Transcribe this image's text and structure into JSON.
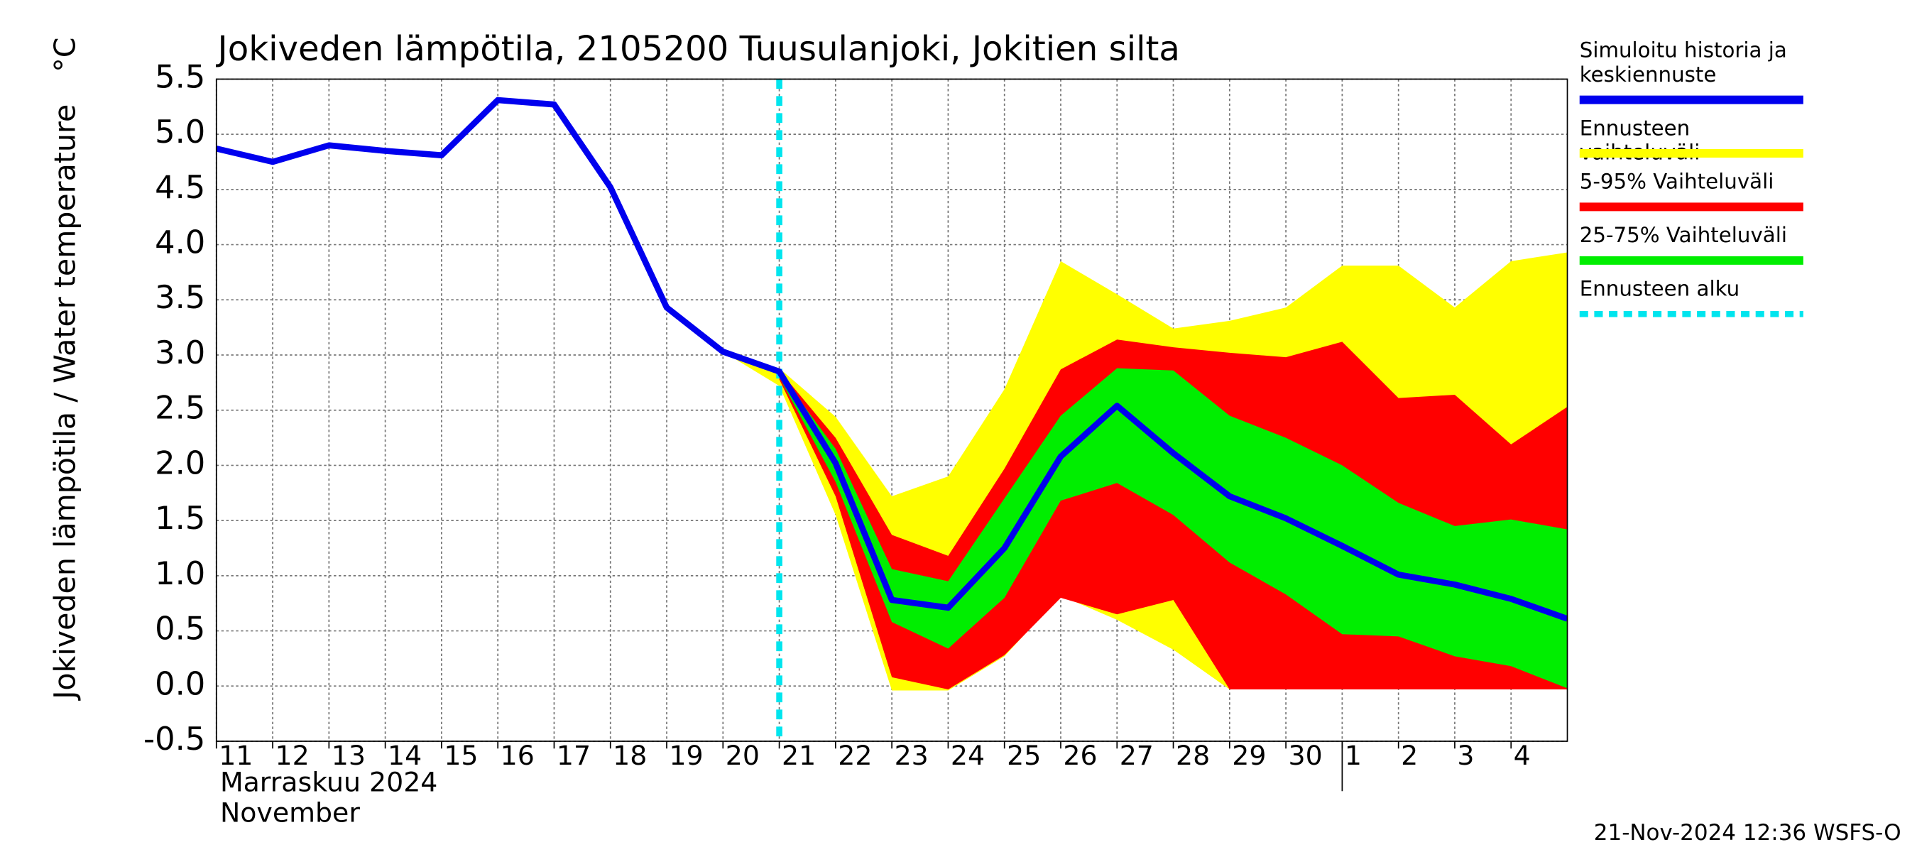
{
  "chart_data": {
    "type": "line",
    "title": "Jokiveden lämpötila, 2105200 Tuusulanjoki, Jokitien silta",
    "y_label": "Jokiveden lämpötila / Water temperature",
    "y_unit": "°C",
    "month_label_fi": "Marraskuu 2024",
    "month_label_en": "November",
    "footer": "21-Nov-2024 12:36 WSFS-O",
    "x": [
      11,
      12,
      13,
      14,
      15,
      16,
      17,
      18,
      19,
      20,
      21,
      22,
      23,
      24,
      25,
      26,
      27,
      28,
      29,
      30,
      31,
      32,
      33,
      34,
      35
    ],
    "xlim": [
      11,
      35
    ],
    "xticks": [
      11,
      12,
      13,
      14,
      15,
      16,
      17,
      18,
      19,
      20,
      21,
      22,
      23,
      24,
      25,
      26,
      27,
      28,
      29,
      30,
      {
        "value": 31,
        "label": "1"
      },
      {
        "value": 32,
        "label": "2"
      },
      {
        "value": 33,
        "label": "3"
      },
      {
        "value": 34,
        "label": "4"
      }
    ],
    "month_separator": 31,
    "ylim": [
      -0.5,
      5.5
    ],
    "yticks": [
      -0.5,
      {
        "value": 0,
        "label": "0.0"
      },
      0.5,
      {
        "value": 1,
        "label": "1.0"
      },
      1.5,
      {
        "value": 2,
        "label": "2.0"
      },
      2.5,
      {
        "value": 3,
        "label": "3.0"
      },
      3.5,
      {
        "value": 4,
        "label": "4.0"
      },
      4.5,
      {
        "value": 5,
        "label": "5.0"
      },
      5.5
    ],
    "grid": true,
    "legend": "right",
    "bands": [
      {
        "name": "Ennusteen vaihteluväli",
        "color": "#ffff00",
        "upper": [
          null,
          null,
          null,
          null,
          null,
          null,
          null,
          null,
          null,
          3.03,
          2.88,
          2.44,
          1.72,
          1.9,
          2.69,
          3.85,
          3.55,
          3.24,
          3.31,
          3.43,
          3.81,
          3.81,
          3.43,
          3.85,
          3.93
        ],
        "lower": [
          null,
          null,
          null,
          null,
          null,
          null,
          null,
          null,
          null,
          3.03,
          2.72,
          1.55,
          -0.04,
          -0.04,
          0.27,
          0.82,
          0.6,
          0.33,
          -0.03,
          -0.03,
          -0.03,
          -0.03,
          -0.03,
          -0.03,
          -0.03
        ]
      },
      {
        "name": "5-95% Vaihteluväli",
        "color": "#ff0000",
        "upper": [
          null,
          null,
          null,
          null,
          null,
          null,
          null,
          null,
          null,
          null,
          2.86,
          2.25,
          1.37,
          1.18,
          1.97,
          2.87,
          3.14,
          3.07,
          3.02,
          2.98,
          3.12,
          2.61,
          2.64,
          2.19,
          2.53
        ],
        "lower": [
          null,
          null,
          null,
          null,
          null,
          null,
          null,
          null,
          null,
          null,
          2.78,
          1.72,
          0.08,
          -0.03,
          0.28,
          0.8,
          0.65,
          0.78,
          -0.03,
          -0.03,
          -0.03,
          -0.03,
          -0.03,
          -0.03,
          -0.03
        ]
      },
      {
        "name": "25-75% Vaihteluväli",
        "color": "#00ee00",
        "upper": [
          null,
          null,
          null,
          null,
          null,
          null,
          null,
          null,
          null,
          null,
          2.84,
          2.15,
          1.06,
          0.95,
          1.7,
          2.45,
          2.88,
          2.86,
          2.45,
          2.25,
          2.0,
          1.66,
          1.45,
          1.51,
          1.42
        ],
        "lower": [
          null,
          null,
          null,
          null,
          null,
          null,
          null,
          null,
          null,
          null,
          2.8,
          1.85,
          0.58,
          0.34,
          0.8,
          1.68,
          1.84,
          1.55,
          1.12,
          0.83,
          0.47,
          0.45,
          0.27,
          0.18,
          -0.02
        ]
      }
    ],
    "series": [
      {
        "name": "Simuloitu historia ja keskiennuste",
        "color": "#0000ee",
        "values": [
          4.87,
          4.75,
          4.9,
          4.85,
          4.81,
          5.31,
          5.27,
          4.52,
          3.43,
          3.03,
          2.85,
          2.02,
          0.78,
          0.71,
          1.25,
          2.08,
          2.54,
          2.11,
          1.72,
          1.52,
          1.27,
          1.01,
          0.92,
          0.79,
          0.61
        ]
      }
    ],
    "forecast_start": {
      "name": "Ennusteen alku",
      "x": 21,
      "color": "#00e5ee"
    }
  }
}
